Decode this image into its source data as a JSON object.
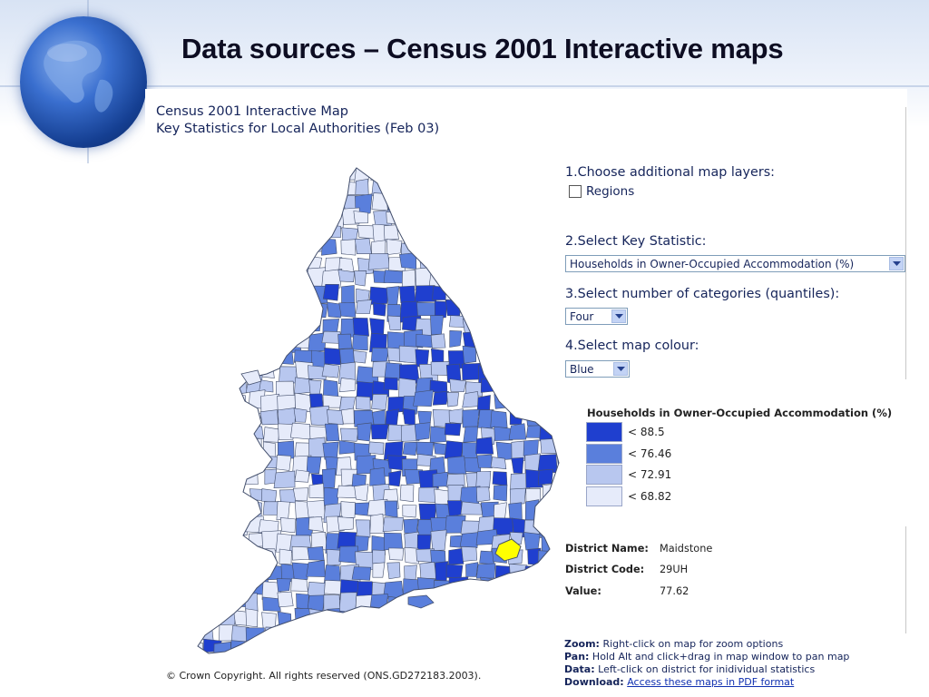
{
  "slide": {
    "title": "Data sources – Census 2001 Interactive maps"
  },
  "app": {
    "title_line1": "Census 2001 Interactive Map",
    "title_line2": "Key Statistics for Local Authorities (Feb 03)"
  },
  "controls": {
    "step1_label": "1.Choose additional map layers:",
    "regions_label": "Regions",
    "regions_checked": false,
    "step2_label": "2.Select Key Statistic:",
    "statistic_value": "Households in Owner-Occupied Accommodation (%)",
    "step3_label": "3.Select number of categories (quantiles):",
    "categories_value": "Four",
    "step4_label": "4.Select map colour:",
    "colour_value": "Blue"
  },
  "legend": {
    "title": "Households in Owner-Occupied Accommodation (%)",
    "items": [
      {
        "label": "< 88.5",
        "color": "#1f3fcf"
      },
      {
        "label": "< 76.46",
        "color": "#5a7fdc"
      },
      {
        "label": "< 72.91",
        "color": "#b8c7ef"
      },
      {
        "label": "< 68.82",
        "color": "#e6ebfa"
      }
    ]
  },
  "district": {
    "name_label": "District Name:",
    "name_value": "Maidstone",
    "code_label": "District Code:",
    "code_value": "29UH",
    "value_label": "Value:",
    "value_value": "77.62",
    "highlight_color": "#ffff00"
  },
  "help": {
    "zoom_key": "Zoom:",
    "zoom_text": " Right-click on map for zoom options",
    "pan_key": "Pan:",
    "pan_text": " Hold Alt and click+drag in map window to pan map",
    "data_key": "Data:",
    "data_text": " Left-click on district for inidividual statistics",
    "download_key": "Download:",
    "download_link": "Access these maps in PDF format"
  },
  "copyright": "© Crown Copyright. All rights reserved (ONS.GD272183.2003)."
}
